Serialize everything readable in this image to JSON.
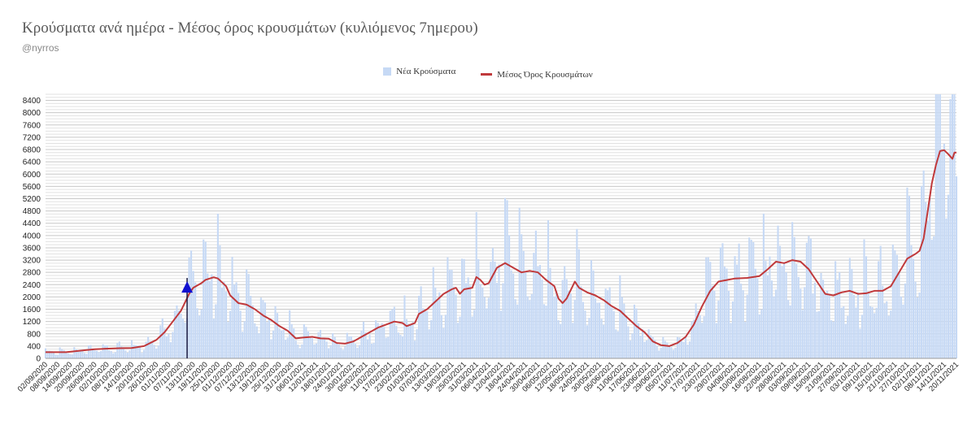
{
  "chart_data": {
    "type": "bar",
    "title": "Κρούσματα ανά ημέρα - Μέσος όρος κρουσμάτων (κυλιόμενος 7ημερου)",
    "subtitle": "@nyrros",
    "legend": {
      "position": "top-center",
      "bars_label": "Νέα Κρούσματα",
      "line_label": "Μέσος Όρος Κρουσμάτων"
    },
    "colors": {
      "bars": "#c6d9f5",
      "line": "#c0393b",
      "marker": "#1010d0",
      "grid": "#d4d4d4"
    },
    "grid": true,
    "ylim": [
      0,
      8600
    ],
    "yticks": [
      0,
      400,
      800,
      1200,
      1600,
      2000,
      2400,
      2800,
      3200,
      3600,
      4000,
      4400,
      4800,
      5200,
      5600,
      6000,
      6400,
      6800,
      7200,
      7600,
      8000,
      8400
    ],
    "x_start": "02/09/2020",
    "x_end": "20/11/2021",
    "xticks": [
      "02/09/2020",
      "08/09/2020",
      "14/09/2020",
      "20/09/2020",
      "26/09/2020",
      "02/10/2020",
      "08/10/2020",
      "14/10/2020",
      "20/10/2020",
      "26/10/2020",
      "01/11/2020",
      "07/11/2020",
      "13/11/2020",
      "19/11/2020",
      "25/11/2020",
      "01/12/2020",
      "07/12/2020",
      "13/12/2020",
      "19/12/2020",
      "25/12/2020",
      "31/12/2020",
      "06/01/2021",
      "12/01/2021",
      "18/01/2021",
      "24/01/2021",
      "30/01/2021",
      "05/02/2021",
      "11/02/2021",
      "17/02/2021",
      "23/02/2021",
      "01/03/2021",
      "07/03/2021",
      "13/03/2021",
      "19/03/2021",
      "25/03/2021",
      "31/03/2021",
      "06/04/2021",
      "12/04/2021",
      "18/04/2021",
      "24/04/2021",
      "30/04/2021",
      "06/05/2021",
      "12/05/2021",
      "18/05/2021",
      "24/05/2021",
      "30/05/2021",
      "05/06/2021",
      "11/06/2021",
      "17/06/2021",
      "23/06/2021",
      "29/06/2021",
      "05/07/2021",
      "11/07/2021",
      "17/07/2021",
      "23/07/2021",
      "29/07/2021",
      "04/08/2021",
      "10/08/2021",
      "16/08/2021",
      "22/08/2021",
      "28/08/2021",
      "03/09/2021",
      "09/09/2021",
      "15/09/2021",
      "21/09/2021",
      "27/09/2021",
      "03/10/2021",
      "09/10/2021",
      "15/10/2021",
      "21/10/2021",
      "27/10/2021",
      "02/11/2021",
      "08/11/2021",
      "14/11/2021",
      "20/11/2021"
    ],
    "average_series": [
      [
        "02/09/2020",
        200
      ],
      [
        "12/09/2020",
        200
      ],
      [
        "20/09/2020",
        260
      ],
      [
        "26/09/2020",
        300
      ],
      [
        "08/10/2020",
        330
      ],
      [
        "14/10/2020",
        340
      ],
      [
        "20/10/2020",
        400
      ],
      [
        "26/10/2020",
        600
      ],
      [
        "30/10/2020",
        850
      ],
      [
        "03/11/2020",
        1200
      ],
      [
        "07/11/2020",
        1550
      ],
      [
        "11/11/2020",
        2100
      ],
      [
        "13/11/2020",
        2300
      ],
      [
        "17/11/2020",
        2450
      ],
      [
        "19/11/2020",
        2560
      ],
      [
        "23/11/2020",
        2640
      ],
      [
        "25/11/2020",
        2600
      ],
      [
        "29/11/2020",
        2350
      ],
      [
        "01/12/2020",
        2050
      ],
      [
        "05/12/2020",
        1800
      ],
      [
        "09/12/2020",
        1750
      ],
      [
        "13/12/2020",
        1600
      ],
      [
        "17/12/2020",
        1400
      ],
      [
        "21/12/2020",
        1250
      ],
      [
        "25/12/2020",
        1050
      ],
      [
        "29/12/2020",
        900
      ],
      [
        "02/01/2021",
        650
      ],
      [
        "06/01/2021",
        680
      ],
      [
        "10/01/2021",
        700
      ],
      [
        "14/01/2021",
        650
      ],
      [
        "18/01/2021",
        640
      ],
      [
        "22/01/2021",
        500
      ],
      [
        "26/01/2021",
        480
      ],
      [
        "30/01/2021",
        550
      ],
      [
        "03/02/2021",
        700
      ],
      [
        "07/02/2021",
        850
      ],
      [
        "11/02/2021",
        1000
      ],
      [
        "15/02/2021",
        1100
      ],
      [
        "19/02/2021",
        1200
      ],
      [
        "23/02/2021",
        1150
      ],
      [
        "25/02/2021",
        1050
      ],
      [
        "01/03/2021",
        1150
      ],
      [
        "03/03/2021",
        1450
      ],
      [
        "07/03/2021",
        1600
      ],
      [
        "11/03/2021",
        1850
      ],
      [
        "15/03/2021",
        2100
      ],
      [
        "19/03/2021",
        2250
      ],
      [
        "21/03/2021",
        2300
      ],
      [
        "23/03/2021",
        2100
      ],
      [
        "25/03/2021",
        2250
      ],
      [
        "29/03/2021",
        2300
      ],
      [
        "31/03/2021",
        2650
      ],
      [
        "02/04/2021",
        2550
      ],
      [
        "04/04/2021",
        2400
      ],
      [
        "06/04/2021",
        2450
      ],
      [
        "10/04/2021",
        2950
      ],
      [
        "14/04/2021",
        3100
      ],
      [
        "18/04/2021",
        2950
      ],
      [
        "22/04/2021",
        2800
      ],
      [
        "26/04/2021",
        2850
      ],
      [
        "30/04/2021",
        2800
      ],
      [
        "04/05/2021",
        2550
      ],
      [
        "08/05/2021",
        2350
      ],
      [
        "10/05/2021",
        1950
      ],
      [
        "12/05/2021",
        1800
      ],
      [
        "14/05/2021",
        1950
      ],
      [
        "18/05/2021",
        2500
      ],
      [
        "20/05/2021",
        2300
      ],
      [
        "24/05/2021",
        2150
      ],
      [
        "28/05/2021",
        2050
      ],
      [
        "01/06/2021",
        1900
      ],
      [
        "05/06/2021",
        1700
      ],
      [
        "09/06/2021",
        1550
      ],
      [
        "13/06/2021",
        1300
      ],
      [
        "17/06/2021",
        1050
      ],
      [
        "21/06/2021",
        850
      ],
      [
        "25/06/2021",
        550
      ],
      [
        "29/06/2021",
        430
      ],
      [
        "03/07/2021",
        400
      ],
      [
        "07/07/2021",
        500
      ],
      [
        "11/07/2021",
        700
      ],
      [
        "15/07/2021",
        1100
      ],
      [
        "19/07/2021",
        1700
      ],
      [
        "23/07/2021",
        2200
      ],
      [
        "27/07/2021",
        2500
      ],
      [
        "31/07/2021",
        2550
      ],
      [
        "04/08/2021",
        2600
      ],
      [
        "10/08/2021",
        2620
      ],
      [
        "16/08/2021",
        2680
      ],
      [
        "20/08/2021",
        2900
      ],
      [
        "24/08/2021",
        3150
      ],
      [
        "28/08/2021",
        3100
      ],
      [
        "01/09/2021",
        3200
      ],
      [
        "05/09/2021",
        3150
      ],
      [
        "09/09/2021",
        2900
      ],
      [
        "13/09/2021",
        2500
      ],
      [
        "17/09/2021",
        2100
      ],
      [
        "21/09/2021",
        2050
      ],
      [
        "25/09/2021",
        2150
      ],
      [
        "29/09/2021",
        2200
      ],
      [
        "03/10/2021",
        2100
      ],
      [
        "07/10/2021",
        2120
      ],
      [
        "11/10/2021",
        2200
      ],
      [
        "15/10/2021",
        2200
      ],
      [
        "19/10/2021",
        2350
      ],
      [
        "23/10/2021",
        2800
      ],
      [
        "27/10/2021",
        3250
      ],
      [
        "31/10/2021",
        3400
      ],
      [
        "02/11/2021",
        3500
      ],
      [
        "04/11/2021",
        3900
      ],
      [
        "06/11/2021",
        4800
      ],
      [
        "08/11/2021",
        5700
      ],
      [
        "10/11/2021",
        6300
      ],
      [
        "12/11/2021",
        6750
      ],
      [
        "14/11/2021",
        6780
      ],
      [
        "16/11/2021",
        6650
      ],
      [
        "18/11/2021",
        6500
      ],
      [
        "19/11/2021",
        6700
      ],
      [
        "20/11/2021",
        6700
      ]
    ],
    "marker": {
      "date": "10/11/2020",
      "value": 2300
    }
  }
}
